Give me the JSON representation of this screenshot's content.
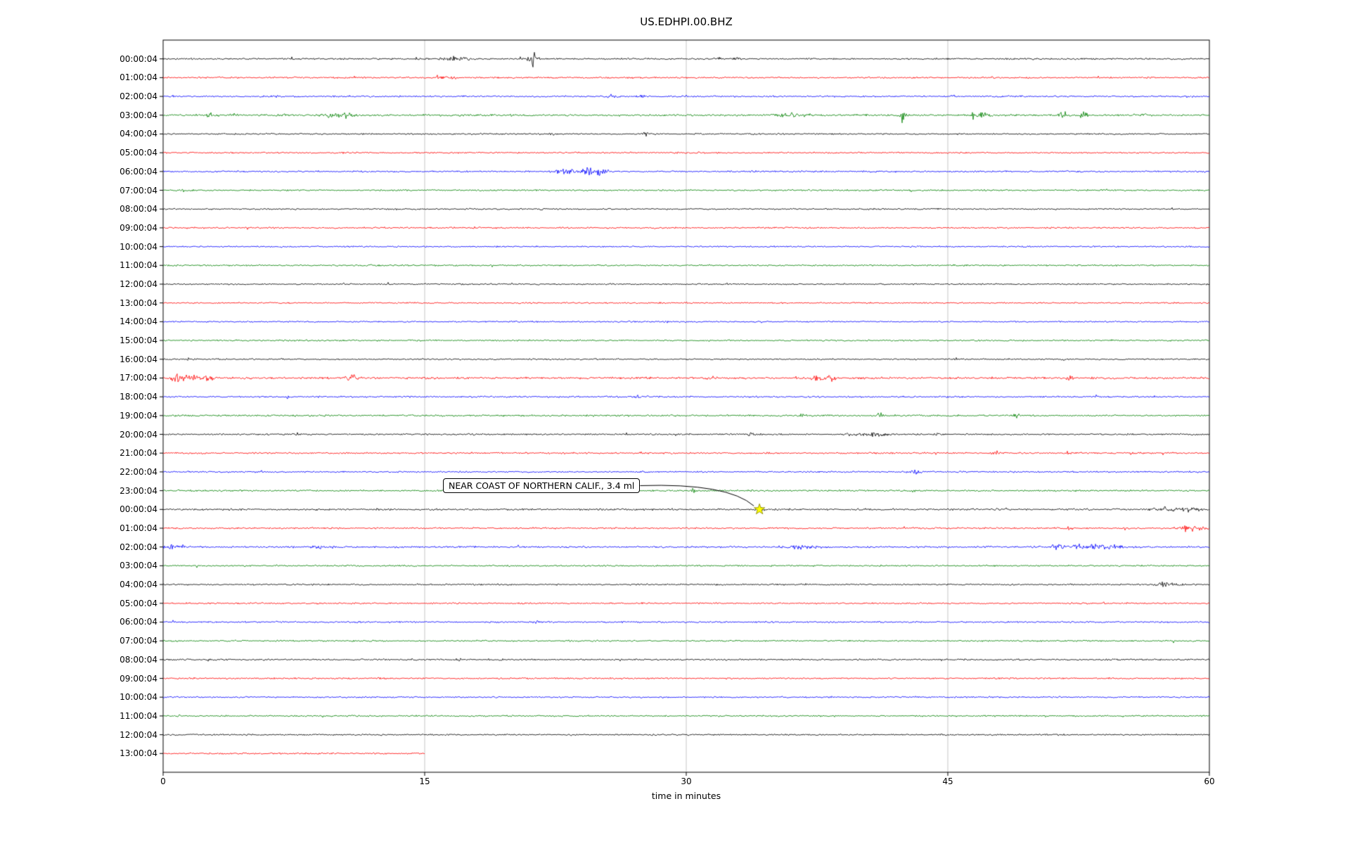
{
  "title": "US.EDHPI.00.BHZ",
  "axes": {
    "xlabel": "time in minutes",
    "x_ticks": [
      0,
      15,
      30,
      45,
      60
    ],
    "x_range_minutes": [
      0,
      60
    ],
    "grid_x_minutes": [
      15,
      30,
      45
    ],
    "grid_color": "#b9b9b9"
  },
  "annotation": {
    "text": "NEAR COAST OF NORTHERN CALIF., 3.4 ml",
    "marker": "star",
    "marker_color": "#ffff00",
    "marker_edge_color": "#808000",
    "row_index": 24,
    "row_label": "00:00:04",
    "time_minutes": 34.2
  },
  "chart_data": {
    "type": "line",
    "subtype": "seismogram_dayplot",
    "station_id": "US.EDHPI.00.BHZ",
    "minutes_per_row": 60,
    "color_cycle": [
      "#000000",
      "#ff0000",
      "#0000ff",
      "#008000"
    ],
    "event_format": "t = minutes from row start, a = amplitude as multiple of background noise, w = burst width in minutes",
    "rows": [
      {
        "label": "00:00:04",
        "color": "#000000",
        "noise": 1.0,
        "events": [
          {
            "t": 16.5,
            "a": 2.2,
            "w": 0.9
          },
          {
            "t": 17.3,
            "a": 1.7,
            "w": 0.4
          },
          {
            "t": 21.2,
            "a": 8.5,
            "w": 0.35
          },
          {
            "t": 31.8,
            "a": 1.8,
            "w": 0.5
          },
          {
            "t": 32.9,
            "a": 1.5,
            "w": 0.3
          }
        ]
      },
      {
        "label": "01:00:04",
        "color": "#ff0000",
        "noise": 1.0,
        "events": [
          {
            "t": 15.9,
            "a": 2.8,
            "w": 0.5
          },
          {
            "t": 16.6,
            "a": 1.6,
            "w": 0.3
          }
        ]
      },
      {
        "label": "02:00:04",
        "color": "#0000ff",
        "noise": 1.0,
        "events": [
          {
            "t": 6.5,
            "a": 1.4,
            "w": 0.3
          },
          {
            "t": 25.8,
            "a": 1.9,
            "w": 0.5
          },
          {
            "t": 27.4,
            "a": 1.6,
            "w": 0.3
          }
        ]
      },
      {
        "label": "03:00:04",
        "color": "#008000",
        "noise": 1.15,
        "events": [
          {
            "t": 2.7,
            "a": 3.5,
            "w": 0.25
          },
          {
            "t": 4.0,
            "a": 1.8,
            "w": 0.4
          },
          {
            "t": 6.8,
            "a": 1.8,
            "w": 0.4
          },
          {
            "t": 9.7,
            "a": 2.6,
            "w": 0.8
          },
          {
            "t": 10.6,
            "a": 2.2,
            "w": 0.4
          },
          {
            "t": 35.8,
            "a": 1.5,
            "w": 1.5
          },
          {
            "t": 42.4,
            "a": 7.5,
            "w": 0.25
          },
          {
            "t": 46.6,
            "a": 4.0,
            "w": 0.5
          },
          {
            "t": 47.3,
            "a": 2.5,
            "w": 0.4
          },
          {
            "t": 51.6,
            "a": 8.0,
            "w": 0.25
          },
          {
            "t": 52.8,
            "a": 2.8,
            "w": 0.4
          },
          {
            "t": 56.2,
            "a": 1.8,
            "w": 0.3
          }
        ]
      },
      {
        "label": "04:00:04",
        "color": "#000000",
        "noise": 0.95,
        "events": [
          {
            "t": 22.2,
            "a": 1.4,
            "w": 0.3
          },
          {
            "t": 27.7,
            "a": 2.4,
            "w": 0.25
          }
        ]
      },
      {
        "label": "05:00:04",
        "color": "#ff0000",
        "noise": 0.95,
        "events": []
      },
      {
        "label": "06:00:04",
        "color": "#0000ff",
        "noise": 1.0,
        "events": [
          {
            "t": 23.2,
            "a": 2.5,
            "w": 1.2
          },
          {
            "t": 24.4,
            "a": 7.0,
            "w": 0.5
          },
          {
            "t": 25.1,
            "a": 3.5,
            "w": 0.6
          }
        ]
      },
      {
        "label": "07:00:04",
        "color": "#008000",
        "noise": 0.95,
        "events": [
          {
            "t": 1.2,
            "a": 1.5,
            "w": 0.3
          }
        ]
      },
      {
        "label": "08:00:04",
        "color": "#000000",
        "noise": 0.9,
        "events": [
          {
            "t": 21.6,
            "a": 1.3,
            "w": 0.3
          }
        ]
      },
      {
        "label": "09:00:04",
        "color": "#ff0000",
        "noise": 1.0,
        "events": []
      },
      {
        "label": "10:00:04",
        "color": "#0000ff",
        "noise": 0.9,
        "events": []
      },
      {
        "label": "11:00:04",
        "color": "#008000",
        "noise": 0.95,
        "events": []
      },
      {
        "label": "12:00:04",
        "color": "#000000",
        "noise": 0.9,
        "events": []
      },
      {
        "label": "13:00:04",
        "color": "#ff0000",
        "noise": 0.9,
        "events": []
      },
      {
        "label": "14:00:04",
        "color": "#0000ff",
        "noise": 0.9,
        "events": []
      },
      {
        "label": "15:00:04",
        "color": "#008000",
        "noise": 0.95,
        "events": []
      },
      {
        "label": "16:00:04",
        "color": "#000000",
        "noise": 0.9,
        "events": [
          {
            "t": 1.5,
            "a": 1.3,
            "w": 0.3
          }
        ]
      },
      {
        "label": "17:00:04",
        "color": "#ff0000",
        "noise": 1.3,
        "events": [
          {
            "t": 0.8,
            "a": 4.5,
            "w": 0.4
          },
          {
            "t": 1.6,
            "a": 3.0,
            "w": 0.5
          },
          {
            "t": 2.6,
            "a": 2.2,
            "w": 0.4
          },
          {
            "t": 10.8,
            "a": 2.6,
            "w": 0.4
          },
          {
            "t": 31.5,
            "a": 1.6,
            "w": 0.4
          },
          {
            "t": 37.5,
            "a": 2.0,
            "w": 0.8
          },
          {
            "t": 38.3,
            "a": 1.8,
            "w": 0.4
          },
          {
            "t": 47.6,
            "a": 1.5,
            "w": 0.3
          },
          {
            "t": 52.0,
            "a": 1.5,
            "w": 0.3
          }
        ]
      },
      {
        "label": "18:00:04",
        "color": "#0000ff",
        "noise": 1.0,
        "events": [
          {
            "t": 7.2,
            "a": 2.8,
            "w": 0.15
          },
          {
            "t": 27.2,
            "a": 2.4,
            "w": 0.15
          }
        ]
      },
      {
        "label": "19:00:04",
        "color": "#008000",
        "noise": 1.1,
        "events": [
          {
            "t": 36.5,
            "a": 1.4,
            "w": 0.4
          },
          {
            "t": 41.1,
            "a": 5.5,
            "w": 0.2
          },
          {
            "t": 48.9,
            "a": 1.6,
            "w": 0.3
          }
        ]
      },
      {
        "label": "20:00:04",
        "color": "#000000",
        "noise": 1.0,
        "events": [
          {
            "t": 7.7,
            "a": 1.8,
            "w": 0.15
          },
          {
            "t": 17.8,
            "a": 1.4,
            "w": 0.3
          },
          {
            "t": 33.8,
            "a": 1.5,
            "w": 0.4
          },
          {
            "t": 39.4,
            "a": 1.8,
            "w": 0.6
          },
          {
            "t": 40.6,
            "a": 2.8,
            "w": 0.7
          },
          {
            "t": 41.4,
            "a": 2.0,
            "w": 0.4
          },
          {
            "t": 44.5,
            "a": 1.4,
            "w": 0.3
          }
        ]
      },
      {
        "label": "21:00:04",
        "color": "#ff0000",
        "noise": 1.05,
        "events": [
          {
            "t": 47.8,
            "a": 1.5,
            "w": 0.3
          },
          {
            "t": 51.8,
            "a": 1.5,
            "w": 0.3
          },
          {
            "t": 55.6,
            "a": 1.4,
            "w": 0.3
          }
        ]
      },
      {
        "label": "22:00:04",
        "color": "#0000ff",
        "noise": 1.0,
        "events": [
          {
            "t": 43.2,
            "a": 3.2,
            "w": 0.35
          }
        ]
      },
      {
        "label": "23:00:04",
        "color": "#008000",
        "noise": 1.0,
        "events": [
          {
            "t": 30.4,
            "a": 1.9,
            "w": 0.25
          },
          {
            "t": 42.9,
            "a": 1.5,
            "w": 0.3
          }
        ]
      },
      {
        "label": "00:00:04",
        "color": "#000000",
        "noise": 1.1,
        "events": [
          {
            "t": 34.2,
            "a": 1.3,
            "w": 0.5
          },
          {
            "t": 48.0,
            "a": 1.4,
            "w": 0.4
          },
          {
            "t": 57.3,
            "a": 3.0,
            "w": 0.8
          },
          {
            "t": 58.6,
            "a": 2.6,
            "w": 0.6
          },
          {
            "t": 59.4,
            "a": 1.8,
            "w": 0.4
          }
        ]
      },
      {
        "label": "01:00:04",
        "color": "#ff0000",
        "noise": 1.05,
        "events": [
          {
            "t": 52.0,
            "a": 1.8,
            "w": 0.25
          },
          {
            "t": 58.7,
            "a": 3.5,
            "w": 0.7
          },
          {
            "t": 59.5,
            "a": 2.5,
            "w": 0.4
          }
        ]
      },
      {
        "label": "02:00:04",
        "color": "#0000ff",
        "noise": 1.15,
        "events": [
          {
            "t": 0.4,
            "a": 2.8,
            "w": 0.5
          },
          {
            "t": 1.1,
            "a": 2.0,
            "w": 0.4
          },
          {
            "t": 8.9,
            "a": 1.6,
            "w": 0.4
          },
          {
            "t": 36.3,
            "a": 2.6,
            "w": 0.9
          },
          {
            "t": 37.2,
            "a": 1.8,
            "w": 0.5
          },
          {
            "t": 51.3,
            "a": 5.5,
            "w": 0.4
          },
          {
            "t": 52.4,
            "a": 2.8,
            "w": 0.6
          },
          {
            "t": 53.6,
            "a": 2.8,
            "w": 0.8
          },
          {
            "t": 54.6,
            "a": 2.2,
            "w": 0.5
          }
        ]
      },
      {
        "label": "03:00:04",
        "color": "#008000",
        "noise": 0.95,
        "events": []
      },
      {
        "label": "04:00:04",
        "color": "#000000",
        "noise": 0.95,
        "events": [
          {
            "t": 57.5,
            "a": 3.2,
            "w": 0.6
          },
          {
            "t": 58.3,
            "a": 1.8,
            "w": 0.3
          }
        ]
      },
      {
        "label": "05:00:04",
        "color": "#ff0000",
        "noise": 0.95,
        "events": []
      },
      {
        "label": "06:00:04",
        "color": "#0000ff",
        "noise": 1.0,
        "events": [
          {
            "t": 21.4,
            "a": 1.4,
            "w": 0.3
          }
        ]
      },
      {
        "label": "07:00:04",
        "color": "#008000",
        "noise": 0.95,
        "events": []
      },
      {
        "label": "08:00:04",
        "color": "#000000",
        "noise": 1.0,
        "events": [
          {
            "t": 17.0,
            "a": 1.3,
            "w": 0.3
          }
        ]
      },
      {
        "label": "09:00:04",
        "color": "#ff0000",
        "noise": 1.0,
        "events": []
      },
      {
        "label": "10:00:04",
        "color": "#0000ff",
        "noise": 0.95,
        "events": []
      },
      {
        "label": "11:00:04",
        "color": "#008000",
        "noise": 0.95,
        "events": []
      },
      {
        "label": "12:00:04",
        "color": "#000000",
        "noise": 0.9,
        "events": []
      },
      {
        "label": "13:00:04",
        "color": "#ff0000",
        "noise": 1.0,
        "duration": 15,
        "events": []
      }
    ]
  }
}
